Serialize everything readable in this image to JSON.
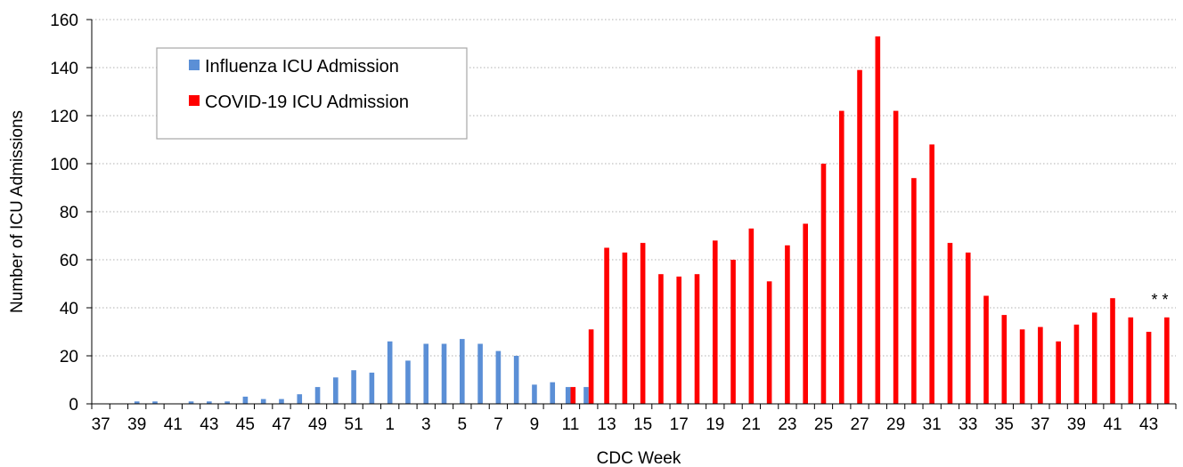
{
  "chart_data": {
    "type": "bar",
    "title": "",
    "xlabel": "CDC Week",
    "ylabel": "Number of ICU Admissions",
    "ylim": [
      0,
      160
    ],
    "yticks": [
      0,
      20,
      40,
      60,
      80,
      100,
      120,
      140,
      160
    ],
    "grid": "horizontal dotted",
    "legend_position": "top-left",
    "categories": [
      "37",
      "38",
      "39",
      "40",
      "41",
      "42",
      "43",
      "44",
      "45",
      "46",
      "47",
      "48",
      "49",
      "50",
      "51",
      "52",
      "1",
      "2",
      "3",
      "4",
      "5",
      "6",
      "7",
      "8",
      "9",
      "10",
      "11",
      "12",
      "13",
      "14",
      "15",
      "16",
      "17",
      "18",
      "19",
      "20",
      "21",
      "22",
      "23",
      "24",
      "25",
      "26",
      "27",
      "28",
      "29",
      "30",
      "31",
      "32",
      "33",
      "34",
      "35",
      "36",
      "37",
      "38",
      "39",
      "40",
      "41",
      "42",
      "43",
      "44"
    ],
    "series": [
      {
        "name": "Influenza ICU Admission",
        "color": "#5B8FD6",
        "values": [
          0,
          0,
          1,
          1,
          0,
          1,
          1,
          1,
          3,
          2,
          2,
          4,
          7,
          11,
          14,
          13,
          26,
          18,
          25,
          25,
          27,
          25,
          22,
          20,
          8,
          9,
          7,
          7,
          0,
          0,
          0,
          0,
          0,
          0,
          0,
          0,
          0,
          0,
          0,
          0,
          0,
          0,
          0,
          0,
          0,
          0,
          0,
          0,
          0,
          0,
          0,
          0,
          0,
          0,
          0,
          0,
          0,
          0,
          0,
          0
        ]
      },
      {
        "name": "COVID-19 ICU Admission",
        "color": "#FF0000",
        "values": [
          0,
          0,
          0,
          0,
          0,
          0,
          0,
          0,
          0,
          0,
          0,
          0,
          0,
          0,
          0,
          0,
          0,
          0,
          0,
          0,
          0,
          0,
          0,
          0,
          0,
          0,
          7,
          31,
          65,
          63,
          67,
          54,
          53,
          54,
          68,
          60,
          73,
          51,
          66,
          75,
          100,
          122,
          139,
          153,
          122,
          94,
          108,
          67,
          63,
          45,
          37,
          31,
          32,
          26,
          33,
          38,
          44,
          36,
          30,
          36
        ]
      }
    ],
    "annotation": "* *"
  }
}
